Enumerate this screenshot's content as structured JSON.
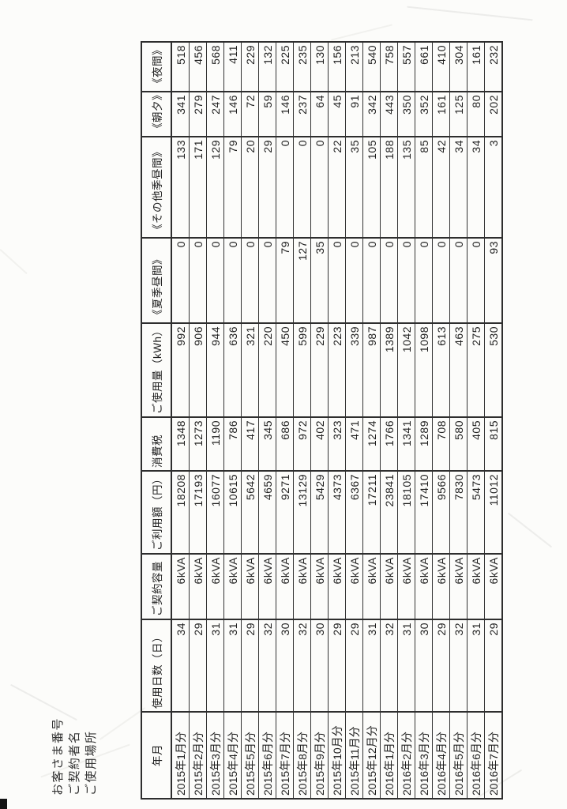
{
  "document": {
    "meta_labels": [
      "お客さま番号",
      "ご契約者名",
      "ご使用場所"
    ]
  },
  "table": {
    "columns": [
      "年月",
      "使用日数（日）",
      "ご契約容量",
      "ご利用額（円）",
      "消費税",
      "ご使用量（kWh）",
      "《夏季昼間》",
      "《その他季昼間》",
      "《朝夕》",
      "《夜間》"
    ],
    "rows": [
      [
        "2015年1月分",
        34,
        "6kVA",
        18208,
        1348,
        992,
        0,
        133,
        341,
        518
      ],
      [
        "2015年2月分",
        29,
        "6kVA",
        17193,
        1273,
        906,
        0,
        171,
        279,
        456
      ],
      [
        "2015年3月分",
        31,
        "6kVA",
        16077,
        1190,
        944,
        0,
        129,
        247,
        568
      ],
      [
        "2015年4月分",
        31,
        "6kVA",
        10615,
        786,
        636,
        0,
        79,
        146,
        411
      ],
      [
        "2015年5月分",
        29,
        "6kVA",
        5642,
        417,
        321,
        0,
        20,
        72,
        229
      ],
      [
        "2015年6月分",
        32,
        "6kVA",
        4659,
        345,
        220,
        0,
        29,
        59,
        132
      ],
      [
        "2015年7月分",
        30,
        "6kVA",
        9271,
        686,
        450,
        79,
        0,
        146,
        225
      ],
      [
        "2015年8月分",
        32,
        "6kVA",
        13129,
        972,
        599,
        127,
        0,
        237,
        235
      ],
      [
        "2015年9月分",
        30,
        "6kVA",
        5429,
        402,
        229,
        35,
        0,
        64,
        130
      ],
      [
        "2015年10月分",
        29,
        "6kVA",
        4373,
        323,
        223,
        0,
        22,
        45,
        156
      ],
      [
        "2015年11月分",
        29,
        "6kVA",
        6367,
        471,
        339,
        0,
        35,
        91,
        213
      ],
      [
        "2015年12月分",
        31,
        "6kVA",
        17211,
        1274,
        987,
        0,
        105,
        342,
        540
      ],
      [
        "2016年1月分",
        32,
        "6kVA",
        23841,
        1766,
        1389,
        0,
        188,
        443,
        758
      ],
      [
        "2016年2月分",
        31,
        "6kVA",
        18105,
        1341,
        1042,
        0,
        135,
        350,
        557
      ],
      [
        "2016年3月分",
        30,
        "6kVA",
        17410,
        1289,
        1098,
        0,
        85,
        352,
        661
      ],
      [
        "2016年4月分",
        29,
        "6kVA",
        9566,
        708,
        613,
        0,
        42,
        161,
        410
      ],
      [
        "2016年5月分",
        32,
        "6kVA",
        7830,
        580,
        463,
        0,
        34,
        125,
        304
      ],
      [
        "2016年6月分",
        31,
        "6kVA",
        5473,
        405,
        275,
        0,
        34,
        80,
        161
      ],
      [
        "2016年7月分",
        29,
        "6kVA",
        11012,
        815,
        530,
        93,
        3,
        202,
        232
      ]
    ]
  },
  "colors": {
    "paper": "#fcfcfa",
    "ink": "#1f1f1f",
    "border": "#2e2e2e"
  }
}
